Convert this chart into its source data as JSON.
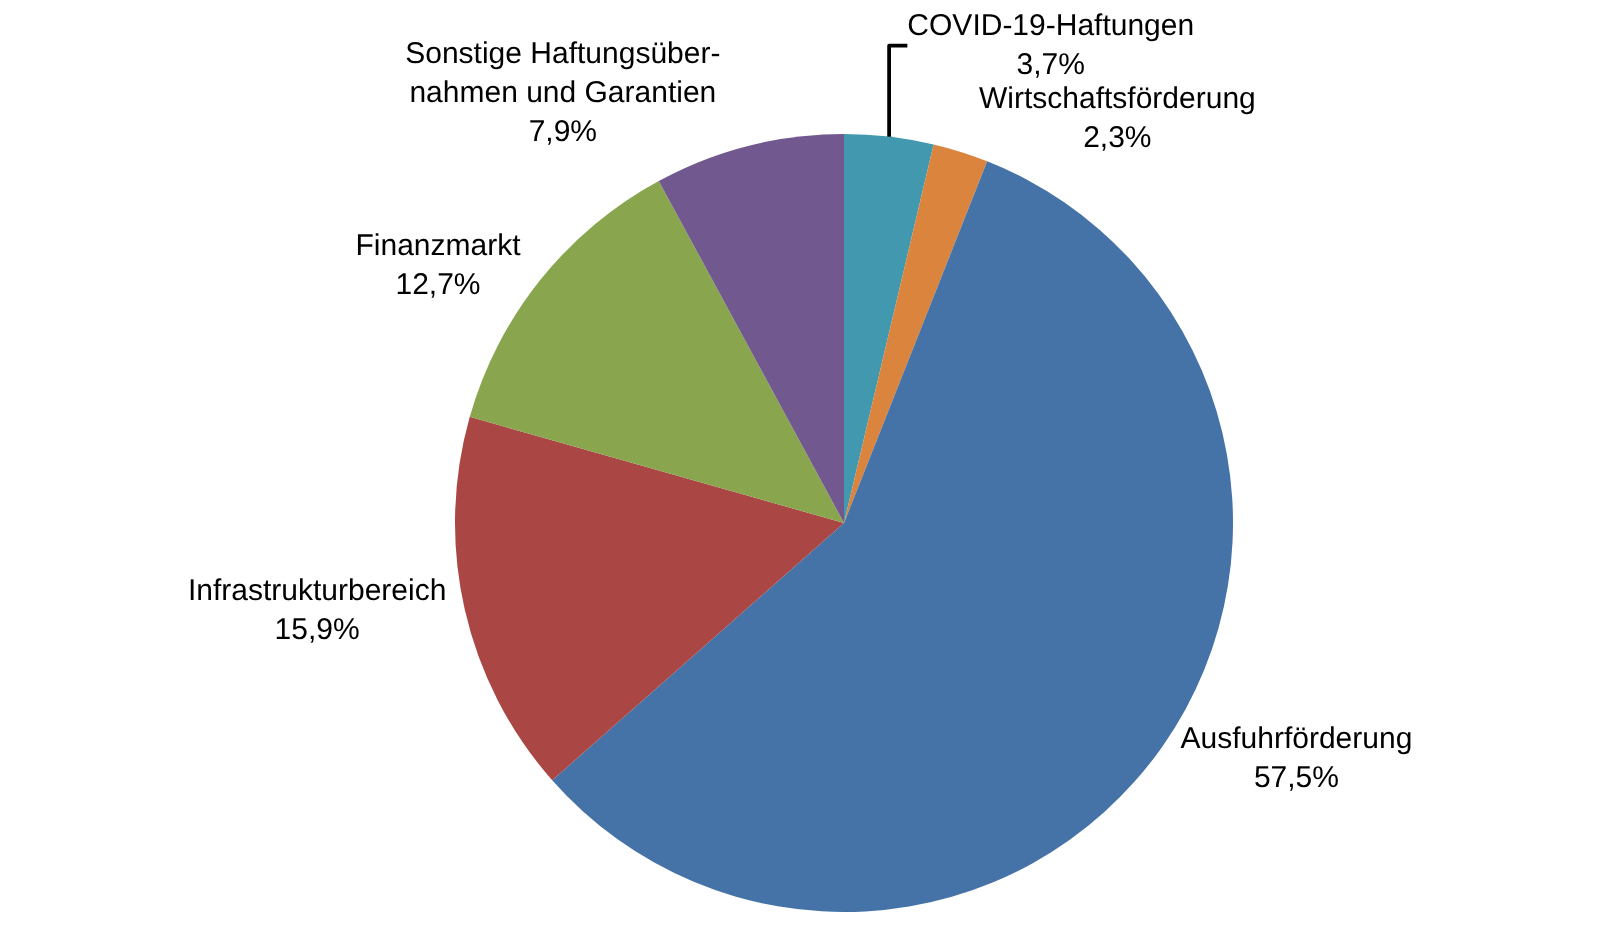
{
  "chart_data": {
    "type": "pie",
    "categories": [
      "COVID-19-Haftungen",
      "Wirtschaftsförderung",
      "Ausfuhrförderung",
      "Infrastrukturbereich",
      "Finanzmarkt",
      "Sonstige Haftungsüber-\nnahmen und Garantien"
    ],
    "values": [
      3.7,
      2.3,
      57.5,
      15.9,
      12.7,
      7.9
    ],
    "value_labels": [
      "3,7%",
      "2,3%",
      "57,5%",
      "15,9%",
      "12,7%",
      "7,9%"
    ],
    "colors": [
      "#4198af",
      "#db843d",
      "#4572a7",
      "#aa4643",
      "#89a54e",
      "#71588f"
    ],
    "legend": false
  }
}
